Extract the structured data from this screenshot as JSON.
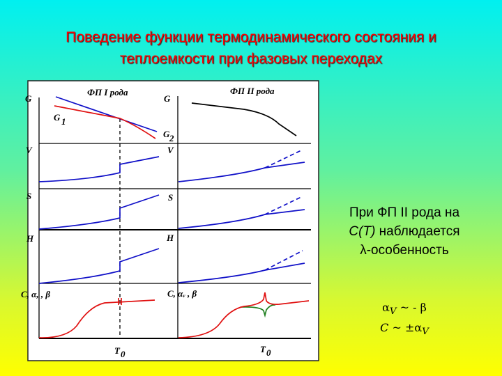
{
  "title": {
    "line1": "Поведение функции термодинамического состояния и",
    "line2": "теплоемкости при фазовых переходах"
  },
  "figure": {
    "left_heading": "ФП  I  рода",
    "right_heading": "ФП  II  рода",
    "labels": {
      "G": "G",
      "G1": "G",
      "G1_sub": "1",
      "G2": "G",
      "G2_sub": "2",
      "V": "V",
      "S": "S",
      "H": "H",
      "C": "C, α, , β",
      "C_right": "C, αᵥ , β",
      "T0": "T",
      "T0_sub": "0"
    },
    "colors": {
      "curve": "#1010c8",
      "G1": "#e01010",
      "C": "#e01010",
      "dip": "#208020"
    }
  },
  "note": {
    "line1": "При ФП II рода на",
    "line2_italic": "C(T)",
    "line2_rest": " наблюдается",
    "line3": "λ-особенность"
  },
  "formulas": {
    "f1_lhs": "α",
    "f1_sub": "V",
    "f1_rhs": " ~ - β",
    "f2_lhs": "C",
    "f2_mid": " ~ ±α",
    "f2_sub": "V"
  }
}
